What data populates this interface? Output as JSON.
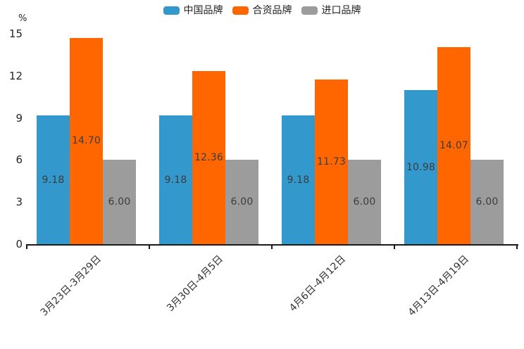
{
  "colors": {
    "series_blue": "#3398CC",
    "series_orange": "#FF6600",
    "series_gray": "#9C9C9C",
    "axis": "#1A1A1A",
    "bar_value_text": "#3C3C3C",
    "background": "#FFFFFF"
  },
  "chart_data": {
    "type": "bar",
    "ylabel": "%",
    "ylim": [
      0,
      15
    ],
    "yticks": [
      0,
      3,
      6,
      9,
      12,
      15
    ],
    "grid": false,
    "legend_position": "top",
    "categories": [
      "3月23日-3月29日",
      "3月30日-4月5日",
      "4月6日-4月12日",
      "4月13日-4月19日"
    ],
    "series": [
      {
        "id": "china-brands",
        "name": "中国品牌",
        "color": "#3398CC",
        "values": [
          9.18,
          9.18,
          9.18,
          10.98
        ]
      },
      {
        "id": "joint-venture-brands",
        "name": "合资品牌",
        "color": "#FF6600",
        "values": [
          14.7,
          12.36,
          11.73,
          14.07
        ]
      },
      {
        "id": "import-brands",
        "name": "进口品牌",
        "color": "#9C9C9C",
        "values": [
          6.0,
          6.0,
          6.0,
          6.0
        ]
      }
    ],
    "value_labels": [
      [
        "9.18",
        "14.70",
        "6.00"
      ],
      [
        "9.18",
        "12.36",
        "6.00"
      ],
      [
        "9.18",
        "11.73",
        "6.00"
      ],
      [
        "10.98",
        "14.07",
        "6.00"
      ]
    ]
  }
}
